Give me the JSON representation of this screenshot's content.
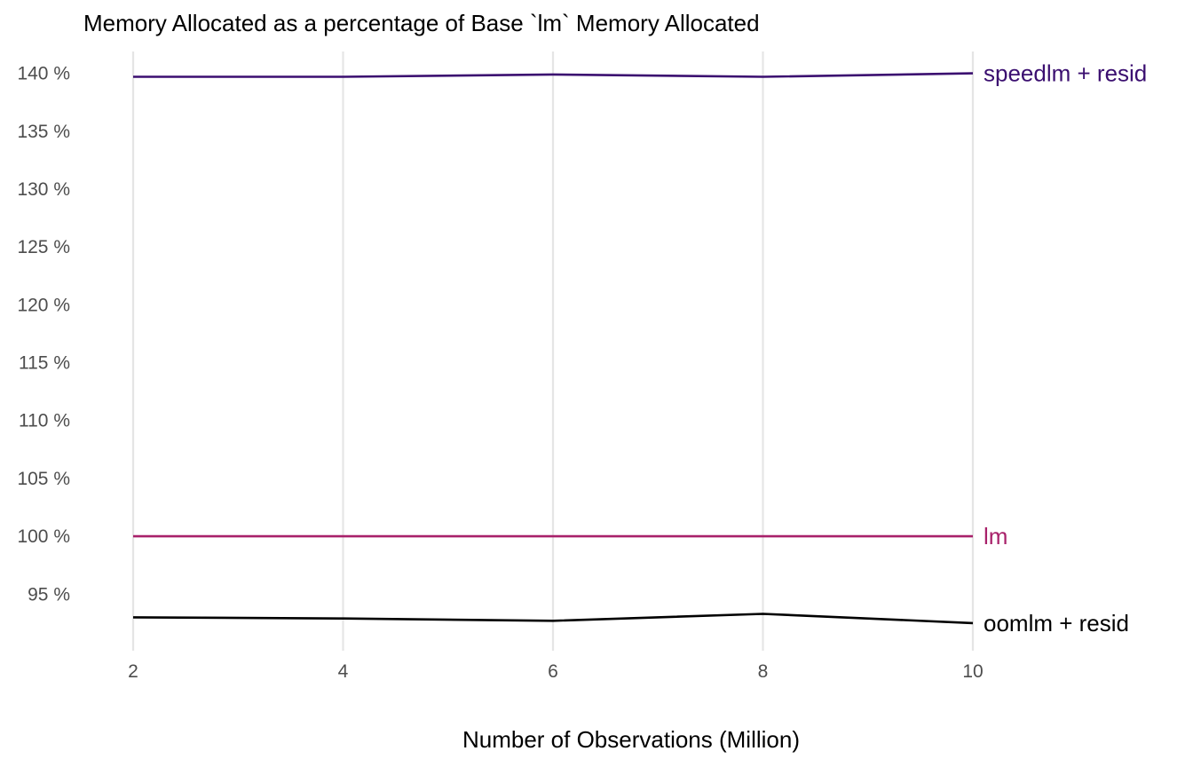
{
  "chart_data": {
    "type": "line",
    "title": "Memory Allocated as a percentage of Base `lm` Memory Allocated",
    "xlabel": "Number of Observations (Million)",
    "ylabel": "",
    "x": [
      2,
      4,
      6,
      8,
      10
    ],
    "xlim": [
      2,
      10
    ],
    "ylim": [
      90.5,
      141.5
    ],
    "x_ticks": [
      2,
      4,
      6,
      8,
      10
    ],
    "x_tick_labels": [
      "2",
      "4",
      "6",
      "8",
      "10"
    ],
    "y_ticks": [
      95,
      100,
      105,
      110,
      115,
      120,
      125,
      130,
      135,
      140
    ],
    "y_tick_labels": [
      "95 %",
      "100 %",
      "105 %",
      "110 %",
      "115 %",
      "120 %",
      "125 %",
      "130 %",
      "135 %",
      "140 %"
    ],
    "grid": "vertical major only",
    "legend": "direct labels at line ends (right)",
    "series": [
      {
        "name": "speedlm + resid",
        "color": "#3b0f70",
        "values": [
          139.7,
          139.7,
          139.9,
          139.7,
          140.0
        ]
      },
      {
        "name": "lm",
        "color": "#a8216a",
        "values": [
          100.0,
          100.0,
          100.0,
          100.0,
          100.0
        ]
      },
      {
        "name": "oomlm + resid",
        "color": "#000000",
        "values": [
          93.0,
          92.9,
          92.7,
          93.3,
          92.5
        ]
      }
    ]
  }
}
